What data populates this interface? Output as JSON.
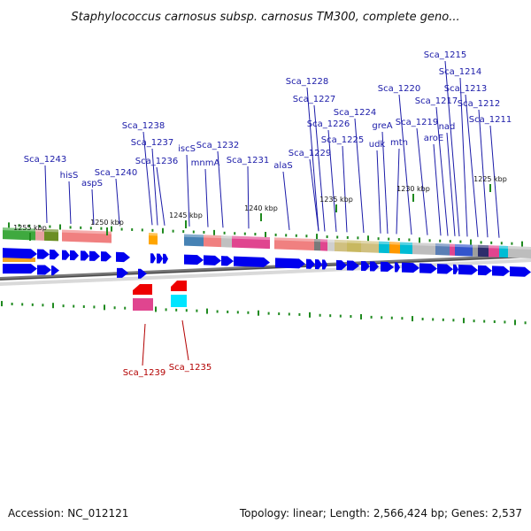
{
  "title": "Staphylococcus carnosus subsp. carnosus TM300, complete geno...",
  "footer": {
    "accession": "Accession: NC_012121",
    "stats": "Topology: linear; Length: 2,566,424 bp; Genes: 2,537"
  },
  "colors": {
    "forward_label": "#1a1aa8",
    "reverse_label": "#b30000",
    "forward_cds": "#0000ee",
    "reverse_cds": "#ee0000",
    "backbone": "#777777",
    "tick": "#1f8a1f"
  },
  "kbp_markers": [
    "1255 kbp",
    "1250 kbp",
    "1245 kbp",
    "1240 kbp",
    "1235 kbp",
    "1230 kbp",
    "1225 kbp"
  ],
  "forward_genes": [
    "Sca_1243",
    "hisS",
    "aspS",
    "Sca_1240",
    "Sca_1238",
    "Sca_1237",
    "Sca_1236",
    "iscS",
    "mnmA",
    "Sca_1232",
    "Sca_1231",
    "alaS",
    "Sca_1229",
    "Sca_1228",
    "Sca_1227",
    "Sca_1226",
    "Sca_1225",
    "Sca_1224",
    "udk",
    "greA",
    "mtn",
    "Sca_1220",
    "Sca_1219",
    "aroE",
    "Sca_1217",
    "nad",
    "Sca_1215",
    "Sca_1214",
    "Sca_1213",
    "Sca_1212",
    "Sca_1211"
  ],
  "reverse_genes": [
    "Sca_1239",
    "Sca_1235"
  ]
}
